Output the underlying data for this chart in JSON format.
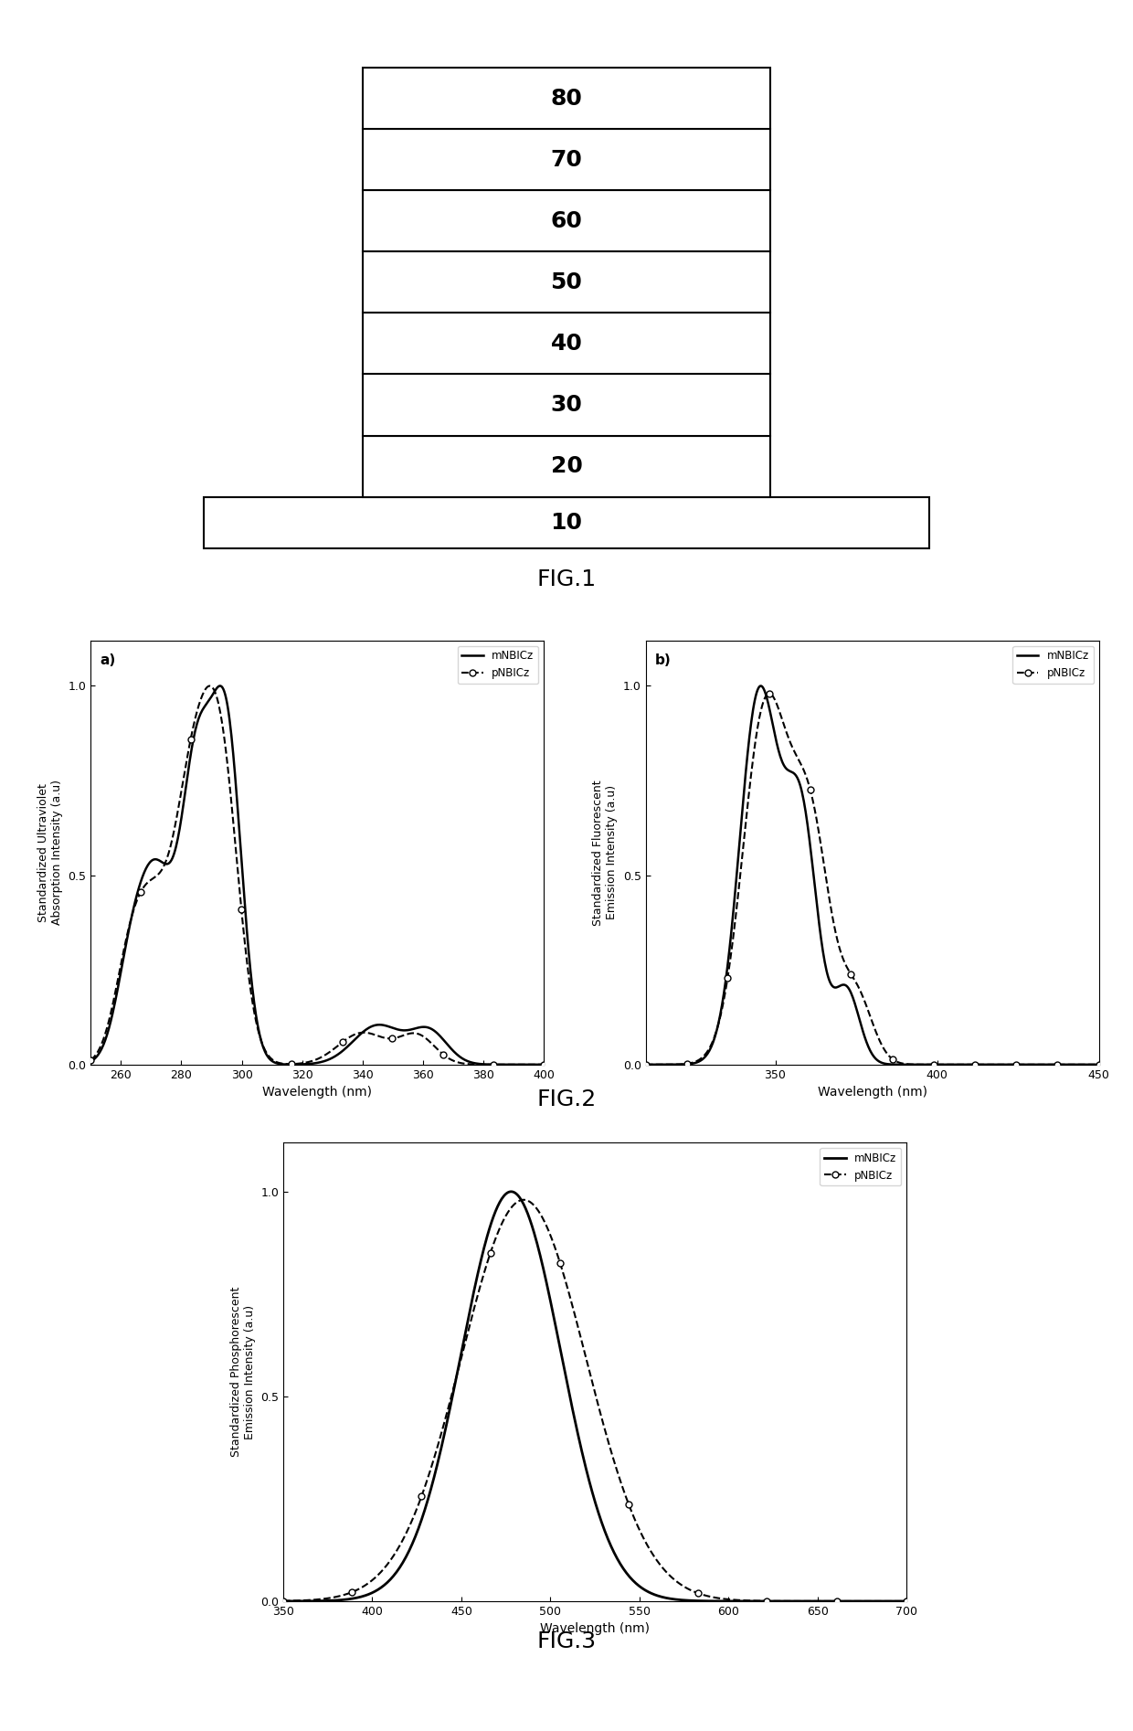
{
  "fig1_layers": [
    "80",
    "70",
    "60",
    "50",
    "40",
    "30",
    "20"
  ],
  "fig1_base": "10",
  "fig1_caption": "FIG.1",
  "fig2_caption": "FIG.2",
  "fig3_caption": "FIG.3",
  "subplot2a_label": "a)",
  "subplot2b_label": "b)",
  "subplot2a_ylabel": "Standardized Ultraviolet\nAbsorption Intensity (a.u)",
  "subplot2b_ylabel": "Standardized Fluorescent\nEmission Intensity (a.u)",
  "subplot2_xlabel": "Wavelength (nm)",
  "subplot3_ylabel": "Standardized Phosphorescent\nEmission Intensity (a.u)",
  "subplot3_xlabel": "Wavelength (nm)",
  "legend_line1": "mNBICz",
  "legend_line2": "pNBICz",
  "bg_color": "#ffffff",
  "line_color_solid": "#000000",
  "line_color_dashed": "#000000"
}
